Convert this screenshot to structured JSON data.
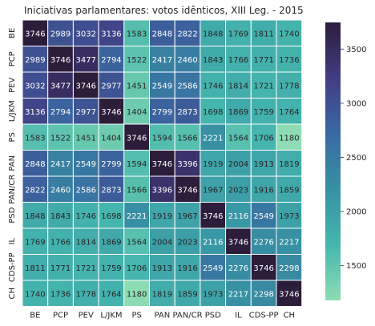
{
  "chart_data": {
    "type": "heatmap",
    "title": "Iniciativas parlamentares: votos idênticos, XIII Leg. - 2015",
    "x_categories": [
      "BE",
      "PCP",
      "PEV",
      "L/JKM",
      "PS",
      "PAN",
      "PAN/CR",
      "PSD",
      "IL",
      "CDS-PP",
      "CH"
    ],
    "y_categories": [
      "BE",
      "PCP",
      "PEV",
      "L/JKM",
      "PS",
      "PAN",
      "PAN/CR",
      "PSD",
      "IL",
      "CDS-PP",
      "CH"
    ],
    "values": [
      [
        3746,
        2989,
        3032,
        3136,
        1583,
        2848,
        2822,
        1848,
        1769,
        1811,
        1740
      ],
      [
        2989,
        3746,
        3477,
        2794,
        1522,
        2417,
        2460,
        1843,
        1766,
        1771,
        1736
      ],
      [
        3032,
        3477,
        3746,
        2977,
        1451,
        2549,
        2586,
        1746,
        1814,
        1721,
        1778
      ],
      [
        3136,
        2794,
        2977,
        3746,
        1404,
        2799,
        2873,
        1698,
        1869,
        1759,
        1764
      ],
      [
        1583,
        1522,
        1451,
        1404,
        3746,
        1594,
        1566,
        2221,
        1564,
        1706,
        1180
      ],
      [
        2848,
        2417,
        2549,
        2799,
        1594,
        3746,
        3396,
        1919,
        2004,
        1913,
        1819
      ],
      [
        2822,
        2460,
        2586,
        2873,
        1566,
        3396,
        3746,
        1967,
        2023,
        1916,
        1859
      ],
      [
        1848,
        1843,
        1746,
        1698,
        2221,
        1919,
        1967,
        3746,
        2116,
        2549,
        1973
      ],
      [
        1769,
        1766,
        1814,
        1869,
        1564,
        2004,
        2023,
        2116,
        3746,
        2276,
        2217
      ],
      [
        1811,
        1771,
        1721,
        1759,
        1706,
        1913,
        1916,
        2549,
        2276,
        3746,
        2298
      ],
      [
        1740,
        1736,
        1778,
        1764,
        1180,
        1819,
        1859,
        1973,
        2217,
        2298,
        3746
      ]
    ],
    "vmin": 1180,
    "vmax": 3746,
    "colorbar_ticks": [
      1500,
      2000,
      2500,
      3000,
      3500
    ],
    "colormap": [
      "#8edcb3",
      "#45b6ad",
      "#3791a3",
      "#3a6aa3",
      "#423c83",
      "#2c1d3b"
    ],
    "cell_border_color": "#ffffff",
    "background_color": "#ffffff"
  }
}
